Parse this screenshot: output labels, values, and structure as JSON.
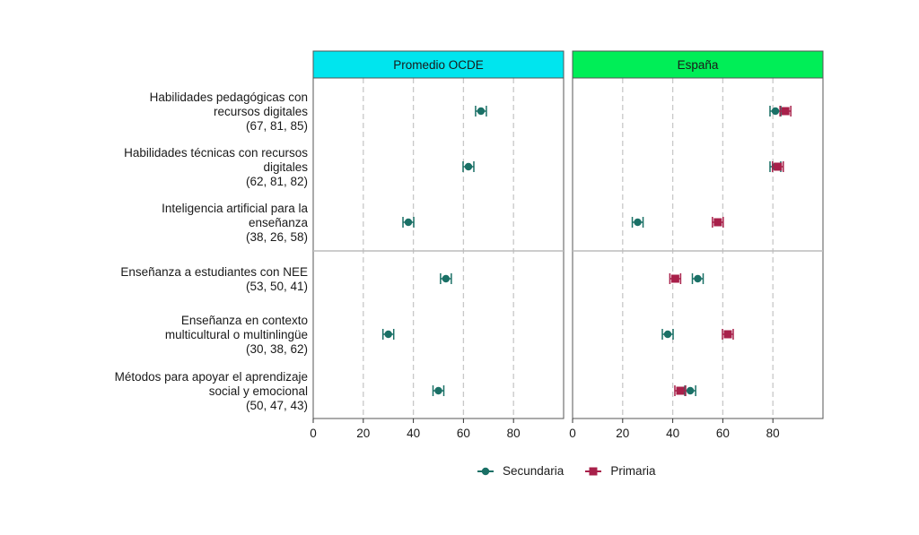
{
  "chart_data": {
    "type": "scatter",
    "panels": [
      {
        "name": "Promedio OCDE",
        "color": "#00e5ee"
      },
      {
        "name": "España",
        "color": "#00ee57"
      }
    ],
    "x_ticks": [
      0,
      20,
      40,
      60,
      80
    ],
    "xlim": [
      0,
      100
    ],
    "series": [
      {
        "name": "Secundaria",
        "color": "#1a7066",
        "marker": "circle"
      },
      {
        "name": "Primaria",
        "color": "#a8204a",
        "marker": "square"
      }
    ],
    "categories": [
      {
        "lines": [
          "Habilidades pedagógicas con",
          "recursos digitales",
          "(67, 81, 85)"
        ],
        "group": 1,
        "ocde": {
          "Secundaria": 67
        },
        "espana": {
          "Secundaria": 81,
          "Primaria": 85
        }
      },
      {
        "lines": [
          "Habilidades técnicas con recursos",
          "digitales",
          "(62, 81, 82)"
        ],
        "group": 1,
        "ocde": {
          "Secundaria": 62
        },
        "espana": {
          "Secundaria": 81,
          "Primaria": 82
        }
      },
      {
        "lines": [
          "Inteligencia artificial para la",
          "enseñanza",
          "(38, 26, 58)"
        ],
        "group": 1,
        "ocde": {
          "Secundaria": 38
        },
        "espana": {
          "Secundaria": 26,
          "Primaria": 58
        }
      },
      {
        "lines": [
          "Enseñanza a estudiantes con NEE",
          "(53, 50, 41)"
        ],
        "group": 2,
        "ocde": {
          "Secundaria": 53
        },
        "espana": {
          "Secundaria": 50,
          "Primaria": 41
        }
      },
      {
        "lines": [
          "Enseñanza en contexto",
          "multicultural o multinlingüe",
          "(30, 38, 62)"
        ],
        "group": 2,
        "ocde": {
          "Secundaria": 30
        },
        "espana": {
          "Secundaria": 38,
          "Primaria": 62
        }
      },
      {
        "lines": [
          "Métodos para apoyar el aprendizaje",
          "social y emocional",
          "(50, 47, 43)"
        ],
        "group": 2,
        "ocde": {
          "Secundaria": 50
        },
        "espana": {
          "Secundaria": 47,
          "Primaria": 43
        }
      }
    ]
  }
}
